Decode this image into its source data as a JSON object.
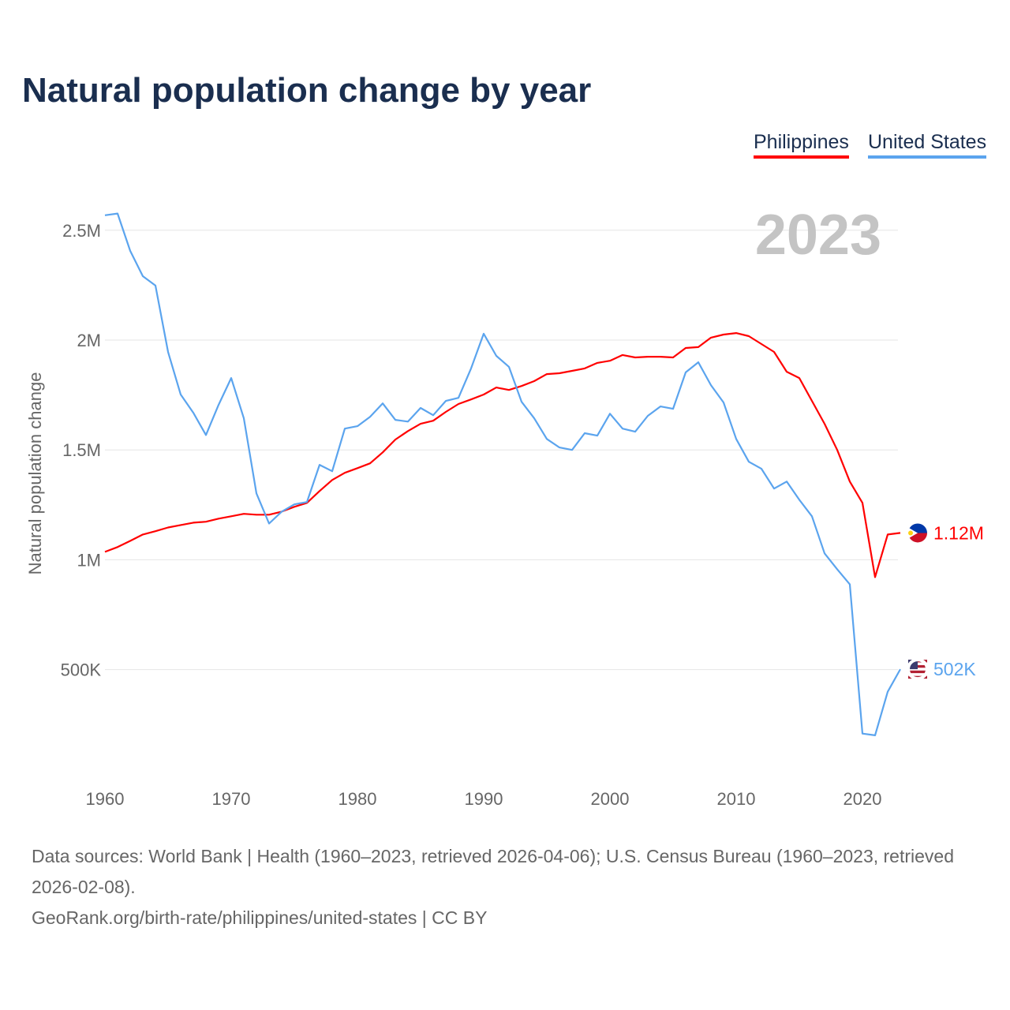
{
  "chart_data": {
    "type": "line",
    "title": "Natural population change by year",
    "xlabel": "",
    "ylabel": "Natural population change",
    "xlim": [
      1960,
      2023
    ],
    "ylim": [
      100000,
      2650000
    ],
    "grid": true,
    "legend_placement": "top-right",
    "x_ticks": [
      "1960",
      "1970",
      "1980",
      "1990",
      "2000",
      "2010",
      "2020"
    ],
    "y_ticks": [
      {
        "value": 500000,
        "label": "500K"
      },
      {
        "value": 1000000,
        "label": "1M"
      },
      {
        "value": 1500000,
        "label": "1.5M"
      },
      {
        "value": 2000000,
        "label": "2M"
      },
      {
        "value": 2500000,
        "label": "2.5M"
      }
    ],
    "year_watermark": "2023",
    "x": [
      1960,
      1961,
      1962,
      1963,
      1964,
      1965,
      1966,
      1967,
      1968,
      1969,
      1970,
      1971,
      1972,
      1973,
      1974,
      1975,
      1976,
      1977,
      1978,
      1979,
      1980,
      1981,
      1982,
      1983,
      1984,
      1985,
      1986,
      1987,
      1988,
      1989,
      1990,
      1991,
      1992,
      1993,
      1994,
      1995,
      1996,
      1997,
      1998,
      1999,
      2000,
      2001,
      2002,
      2003,
      2004,
      2005,
      2006,
      2007,
      2008,
      2009,
      2010,
      2011,
      2012,
      2013,
      2014,
      2015,
      2016,
      2017,
      2018,
      2019,
      2020,
      2021,
      2022,
      2023
    ],
    "series": [
      {
        "name": "Philippines",
        "color": "#ff0000",
        "end_label": "1.12M",
        "flag": "philippines-flag-icon",
        "values": [
          1036000,
          1058000,
          1086000,
          1115000,
          1130000,
          1147000,
          1158000,
          1169000,
          1173000,
          1187000,
          1198000,
          1209000,
          1205000,
          1205000,
          1219000,
          1241000,
          1259000,
          1313000,
          1363000,
          1396000,
          1417000,
          1439000,
          1489000,
          1547000,
          1586000,
          1619000,
          1633000,
          1673000,
          1709000,
          1730000,
          1752000,
          1784000,
          1773000,
          1791000,
          1813000,
          1845000,
          1849000,
          1860000,
          1871000,
          1896000,
          1906000,
          1932000,
          1921000,
          1924000,
          1924000,
          1921000,
          1964000,
          1968000,
          2011000,
          2025000,
          2032000,
          2018000,
          1982000,
          1946000,
          1856000,
          1827000,
          1723000,
          1619000,
          1500000,
          1356000,
          1259000,
          921000,
          1115000,
          1122000
        ]
      },
      {
        "name": "United States",
        "color": "#5ba4ee",
        "end_label": "502K",
        "flag": "united-states-flag-icon",
        "values": [
          2568000,
          2576000,
          2406000,
          2291000,
          2248000,
          1946000,
          1752000,
          1669000,
          1568000,
          1705000,
          1827000,
          1644000,
          1302000,
          1165000,
          1219000,
          1252000,
          1263000,
          1432000,
          1403000,
          1597000,
          1608000,
          1651000,
          1712000,
          1637000,
          1629000,
          1691000,
          1658000,
          1723000,
          1737000,
          1871000,
          2029000,
          1928000,
          1878000,
          1719000,
          1644000,
          1550000,
          1511000,
          1500000,
          1576000,
          1565000,
          1665000,
          1597000,
          1583000,
          1655000,
          1698000,
          1687000,
          1853000,
          1899000,
          1795000,
          1716000,
          1550000,
          1446000,
          1414000,
          1324000,
          1356000,
          1273000,
          1198000,
          1029000,
          957000,
          888000,
          209000,
          201000,
          399000,
          502000
        ]
      }
    ]
  },
  "legend": {
    "philippines": "Philippines",
    "united_states": "United States"
  },
  "footer": {
    "sources": "Data sources: World Bank | Health (1960–2023, retrieved 2026-04-06); U.S. Census Bureau (1960–2023, retrieved 2026-02-08).",
    "credit": "GeoRank.org/birth-rate/philippines/united-states | CC BY"
  }
}
